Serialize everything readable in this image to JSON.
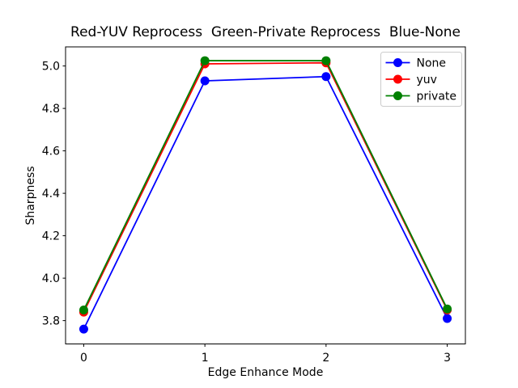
{
  "figure": {
    "background": "#ffffff"
  },
  "chart_data": {
    "type": "line",
    "title": "Red-YUV Reprocess  Green-Private Reprocess  Blue-None",
    "xlabel": "Edge Enhance Mode",
    "ylabel": "Sharpness",
    "x": [
      0,
      1,
      2,
      3
    ],
    "series": [
      {
        "name": "None",
        "color": "#0000ff",
        "values": [
          3.76,
          4.93,
          4.95,
          3.81
        ]
      },
      {
        "name": "yuv",
        "color": "#ff0000",
        "values": [
          3.84,
          5.01,
          5.015,
          3.85
        ]
      },
      {
        "name": "private",
        "color": "#008000",
        "values": [
          3.85,
          5.025,
          5.025,
          3.855
        ]
      }
    ],
    "xlim": [
      -0.15,
      3.15
    ],
    "ylim": [
      3.69,
      5.09
    ],
    "xticks": [
      0,
      1,
      2,
      3
    ],
    "xtick_labels": [
      "0",
      "1",
      "2",
      "3"
    ],
    "yticks": [
      3.8,
      4.0,
      4.2,
      4.4,
      4.6,
      4.8,
      5.0
    ],
    "ytick_labels": [
      "3.8",
      "4.0",
      "4.2",
      "4.4",
      "4.6",
      "4.8",
      "5.0"
    ],
    "grid": false,
    "marker": "circle",
    "legend": {
      "position": "upper right",
      "entries": [
        "None",
        "yuv",
        "private"
      ],
      "border_color": "#cccccc",
      "background": "#ffffff"
    },
    "axis_color": "#000000"
  }
}
